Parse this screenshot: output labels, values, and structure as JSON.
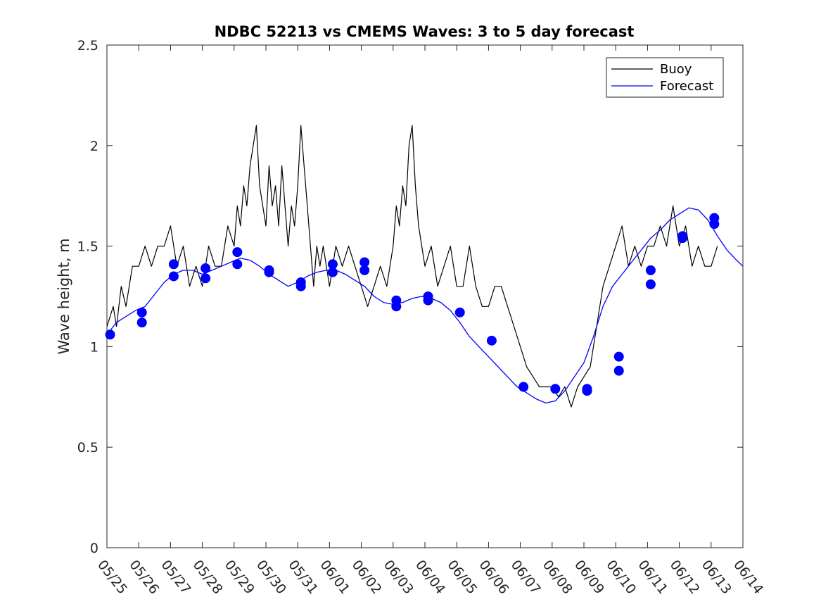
{
  "chart_data": {
    "type": "line",
    "title": "NDBC 52213 vs CMEMS Waves: 3 to 5 day forecast",
    "xlabel": "",
    "ylabel": "Wave height, m",
    "xlim": [
      "05/25",
      "06/14"
    ],
    "ylim": [
      0,
      2.5
    ],
    "yticks": [
      "0",
      "0.5",
      "1",
      "1.5",
      "2",
      "2.5"
    ],
    "xticks": [
      "05/25",
      "05/26",
      "05/27",
      "05/28",
      "05/29",
      "05/30",
      "05/31",
      "06/01",
      "06/02",
      "06/03",
      "06/04",
      "06/05",
      "06/06",
      "06/07",
      "06/08",
      "06/09",
      "06/10",
      "06/11",
      "06/12",
      "06/13",
      "06/14"
    ],
    "grid": false,
    "legend_position": "top-right",
    "colors": {
      "buoy": "#000000",
      "forecast": "#0000ff"
    },
    "series": [
      {
        "name": "Buoy",
        "color": "#000000",
        "x": [
          0.0,
          0.2,
          0.3,
          0.45,
          0.6,
          0.8,
          1.0,
          1.2,
          1.4,
          1.6,
          1.8,
          2.0,
          2.2,
          2.4,
          2.6,
          2.8,
          3.0,
          3.2,
          3.4,
          3.6,
          3.8,
          4.0,
          4.1,
          4.2,
          4.3,
          4.4,
          4.5,
          4.6,
          4.7,
          4.8,
          4.9,
          5.0,
          5.1,
          5.2,
          5.3,
          5.4,
          5.5,
          5.6,
          5.7,
          5.8,
          5.9,
          6.0,
          6.1,
          6.2,
          6.3,
          6.4,
          6.5,
          6.6,
          6.7,
          6.8,
          7.0,
          7.2,
          7.4,
          7.6,
          7.8,
          8.0,
          8.2,
          8.4,
          8.6,
          8.8,
          9.0,
          9.1,
          9.2,
          9.3,
          9.4,
          9.5,
          9.6,
          9.7,
          9.8,
          9.9,
          10.0,
          10.2,
          10.4,
          10.6,
          10.8,
          11.0,
          11.2,
          11.4,
          11.6,
          11.8,
          12.0,
          12.2,
          12.4,
          12.6,
          12.8,
          13.0,
          13.2,
          13.4,
          13.6,
          13.8,
          14.0,
          14.2,
          14.4,
          14.6,
          14.8,
          15.0,
          15.2,
          15.4,
          15.6,
          15.8,
          16.0,
          16.2,
          16.4,
          16.6,
          16.8,
          17.0,
          17.2,
          17.4,
          17.6,
          17.8,
          18.0,
          18.2,
          18.4,
          18.6,
          18.8,
          19.0,
          19.2
        ],
        "y": [
          1.1,
          1.2,
          1.1,
          1.3,
          1.2,
          1.4,
          1.4,
          1.5,
          1.4,
          1.5,
          1.5,
          1.6,
          1.4,
          1.5,
          1.3,
          1.4,
          1.3,
          1.5,
          1.4,
          1.4,
          1.6,
          1.5,
          1.7,
          1.6,
          1.8,
          1.7,
          1.9,
          2.0,
          2.1,
          1.8,
          1.7,
          1.6,
          1.9,
          1.7,
          1.8,
          1.6,
          1.9,
          1.7,
          1.5,
          1.7,
          1.6,
          1.8,
          2.1,
          1.9,
          1.7,
          1.5,
          1.3,
          1.5,
          1.4,
          1.5,
          1.3,
          1.5,
          1.4,
          1.5,
          1.4,
          1.3,
          1.2,
          1.3,
          1.4,
          1.3,
          1.5,
          1.7,
          1.6,
          1.8,
          1.7,
          2.0,
          2.1,
          1.8,
          1.6,
          1.5,
          1.4,
          1.5,
          1.3,
          1.4,
          1.5,
          1.3,
          1.3,
          1.5,
          1.3,
          1.2,
          1.2,
          1.3,
          1.3,
          1.2,
          1.1,
          1.0,
          0.9,
          0.85,
          0.8,
          0.8,
          0.8,
          0.75,
          0.8,
          0.7,
          0.8,
          0.85,
          0.9,
          1.1,
          1.3,
          1.4,
          1.5,
          1.6,
          1.4,
          1.5,
          1.4,
          1.5,
          1.5,
          1.6,
          1.5,
          1.7,
          1.5,
          1.6,
          1.4,
          1.5,
          1.4,
          1.4,
          1.5
        ]
      },
      {
        "name": "Forecast",
        "color": "#0000ff",
        "x": [
          0.0,
          0.3,
          0.6,
          0.9,
          1.2,
          1.5,
          1.8,
          2.1,
          2.4,
          2.7,
          3.0,
          3.3,
          3.6,
          3.9,
          4.2,
          4.5,
          4.8,
          5.1,
          5.4,
          5.7,
          6.0,
          6.3,
          6.6,
          6.9,
          7.2,
          7.5,
          7.8,
          8.1,
          8.4,
          8.7,
          9.0,
          9.3,
          9.6,
          9.9,
          10.2,
          10.5,
          10.8,
          11.1,
          11.4,
          11.7,
          12.0,
          12.3,
          12.6,
          12.9,
          13.2,
          13.5,
          13.8,
          14.1,
          14.4,
          14.7,
          15.0,
          15.3,
          15.6,
          15.9,
          16.2,
          16.5,
          16.8,
          17.1,
          17.4,
          17.7,
          18.0,
          18.3,
          18.6,
          18.9,
          19.2,
          19.5,
          19.8,
          20.0
        ],
        "y": [
          1.06,
          1.12,
          1.15,
          1.18,
          1.2,
          1.26,
          1.32,
          1.36,
          1.38,
          1.38,
          1.36,
          1.38,
          1.4,
          1.42,
          1.44,
          1.43,
          1.4,
          1.36,
          1.33,
          1.3,
          1.32,
          1.35,
          1.37,
          1.38,
          1.38,
          1.36,
          1.33,
          1.3,
          1.25,
          1.22,
          1.21,
          1.22,
          1.24,
          1.25,
          1.24,
          1.22,
          1.18,
          1.12,
          1.05,
          1.0,
          0.95,
          0.9,
          0.85,
          0.8,
          0.77,
          0.74,
          0.72,
          0.73,
          0.78,
          0.85,
          0.92,
          1.05,
          1.2,
          1.3,
          1.36,
          1.42,
          1.48,
          1.54,
          1.58,
          1.63,
          1.66,
          1.69,
          1.68,
          1.63,
          1.55,
          1.48,
          1.43,
          1.4
        ]
      }
    ],
    "markers": {
      "color": "#0000ff",
      "x": [
        0.1,
        1.1,
        1.1,
        2.1,
        2.1,
        3.1,
        3.1,
        4.1,
        4.1,
        5.1,
        5.1,
        6.1,
        6.1,
        7.1,
        7.1,
        8.1,
        8.1,
        9.1,
        9.1,
        10.1,
        10.1,
        11.1,
        12.1,
        13.1,
        14.1,
        15.1,
        15.1,
        16.1,
        16.1,
        17.1,
        17.1,
        18.1,
        18.1,
        19.1,
        19.1
      ],
      "y": [
        1.06,
        1.12,
        1.17,
        1.35,
        1.41,
        1.34,
        1.39,
        1.41,
        1.47,
        1.37,
        1.38,
        1.3,
        1.32,
        1.37,
        1.41,
        1.38,
        1.42,
        1.2,
        1.23,
        1.23,
        1.25,
        1.17,
        1.03,
        0.8,
        0.79,
        0.78,
        0.79,
        0.88,
        0.95,
        1.31,
        1.38,
        1.54,
        1.55,
        1.61,
        1.64
      ]
    }
  }
}
